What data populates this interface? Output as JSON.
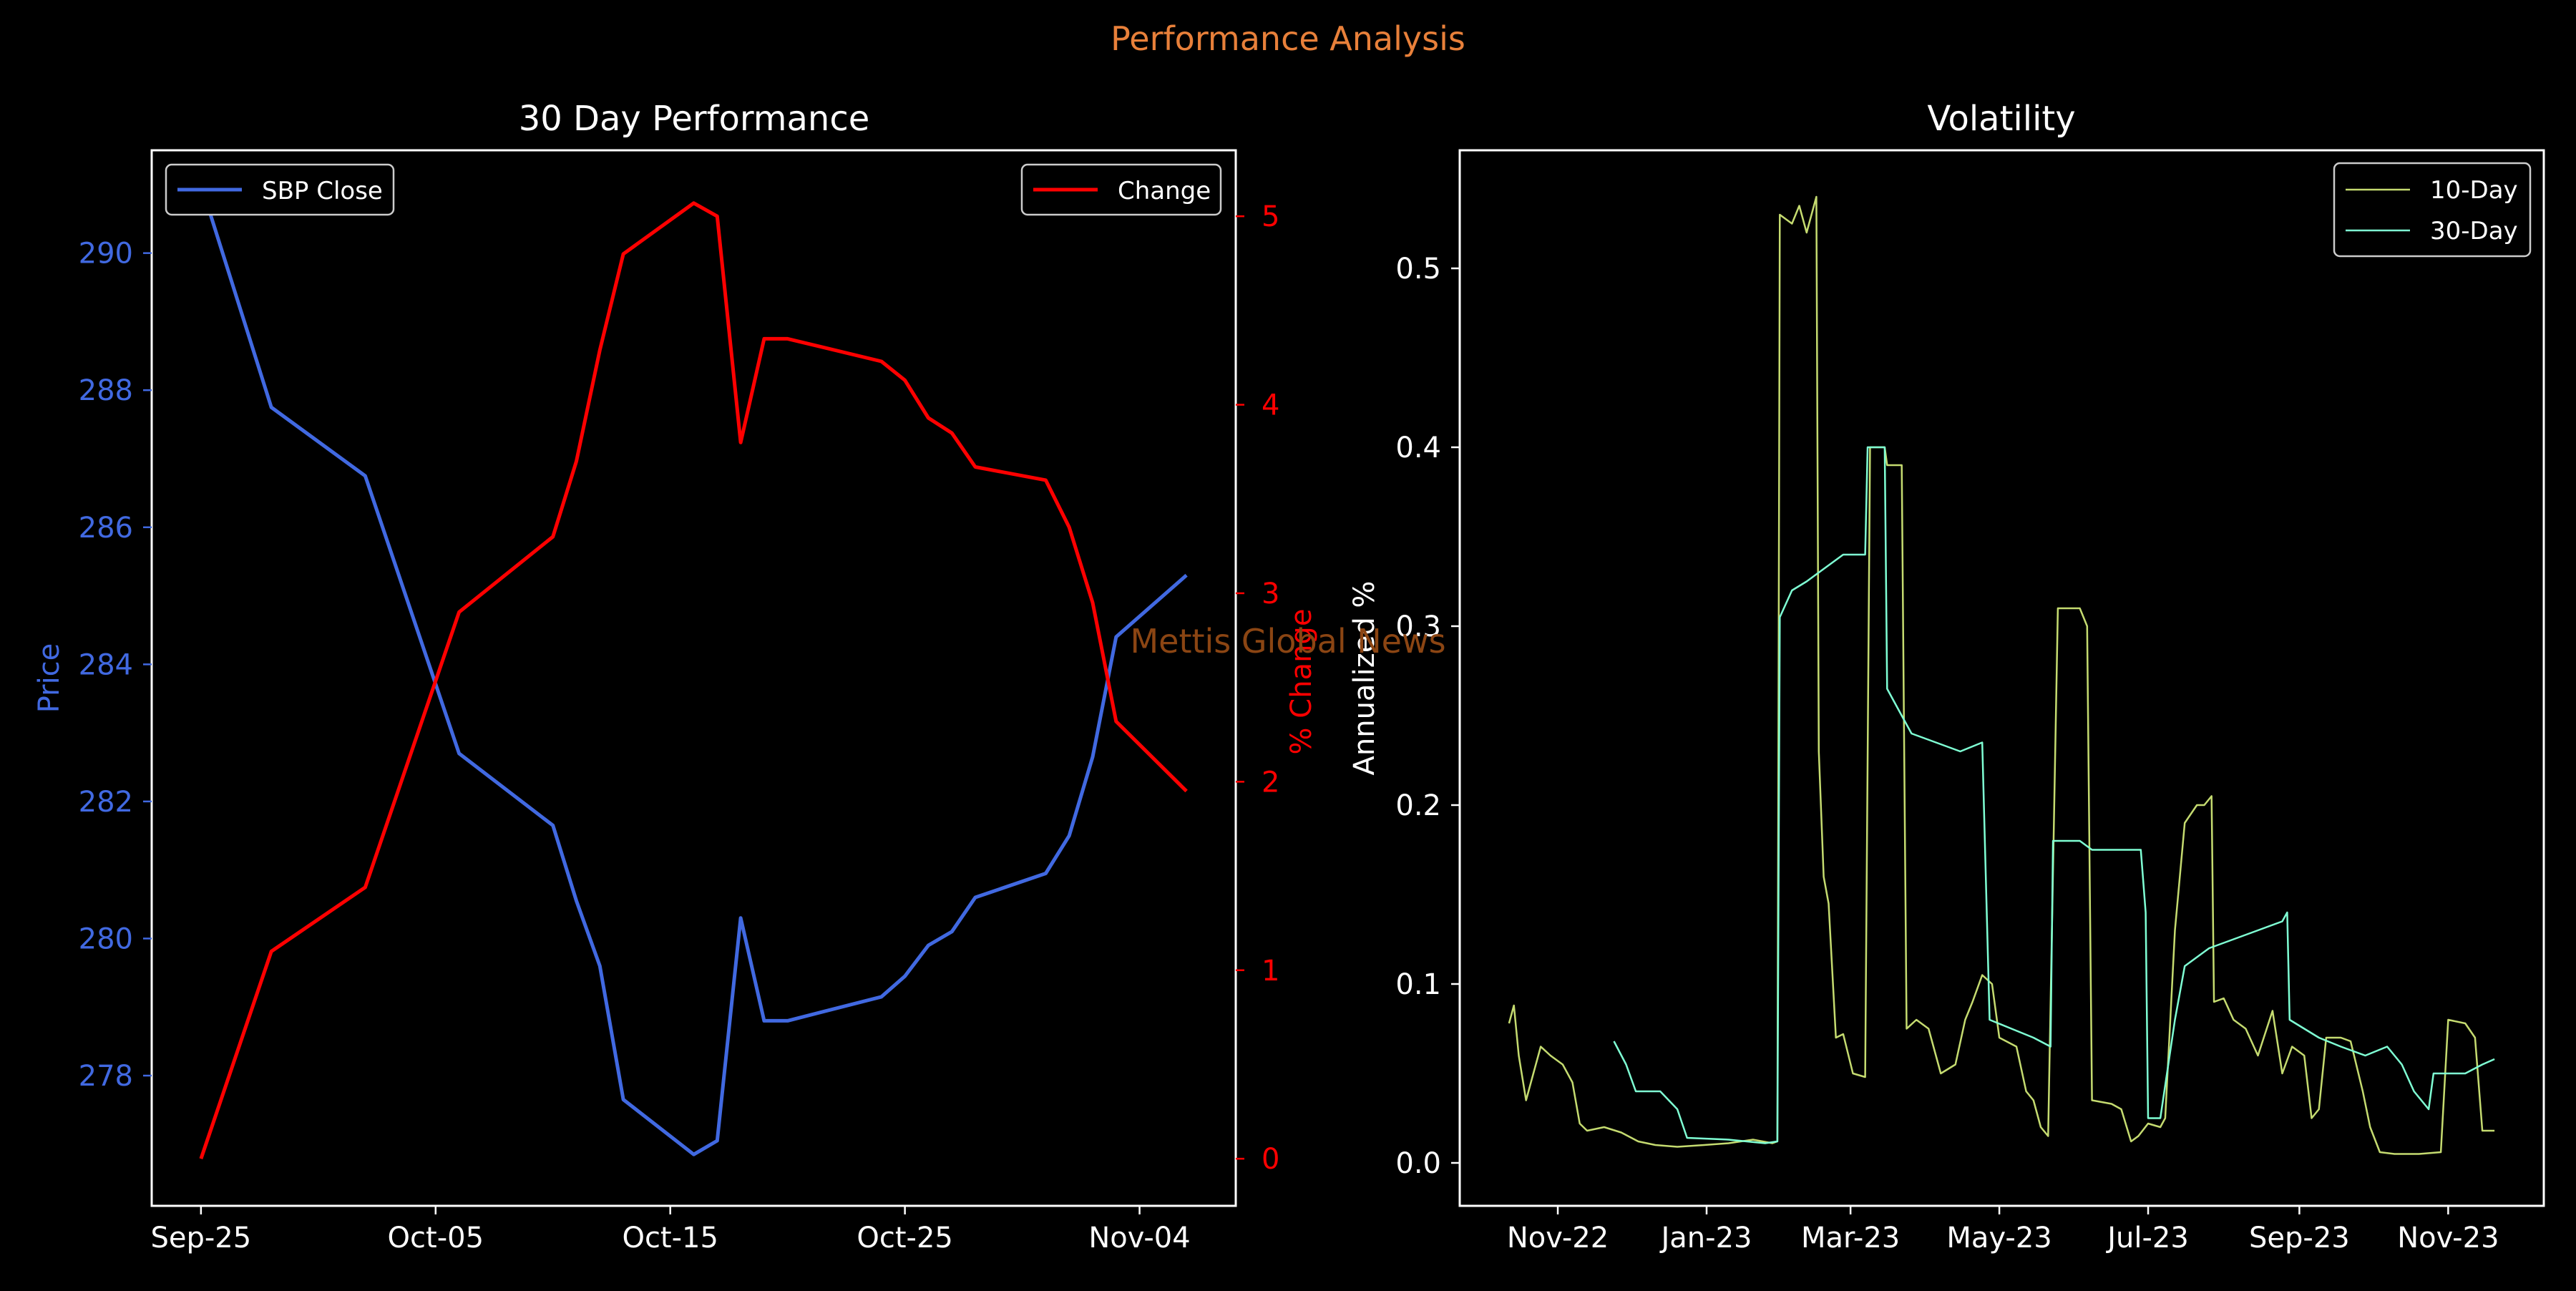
{
  "suptitle": "Performance Analysis",
  "watermark": "Mettis Global News",
  "colors": {
    "background": "#000000",
    "suptitle": "#E8803A",
    "price": "#4169E1",
    "change": "#FF0000",
    "vol10": "#C5DB70",
    "vol30": "#7FFFD4",
    "axis": "#FFFFFF",
    "watermark": "#8B4513"
  },
  "chart_data": [
    {
      "type": "line",
      "title": "30 Day Performance",
      "xlabel": "",
      "ylabel_left": "Price",
      "ylabel_right": "% Change",
      "x_tick_labels": [
        "Sep-25",
        "Oct-05",
        "Oct-15",
        "Oct-25",
        "Nov-04"
      ],
      "ylim_left": [
        276.1,
        291.5
      ],
      "ylim_right": [
        -0.25,
        5.35
      ],
      "y_ticks_left": [
        278,
        280,
        282,
        284,
        286,
        288,
        290
      ],
      "y_ticks_right": [
        0,
        1,
        2,
        3,
        4,
        5
      ],
      "legend_left": {
        "label": "SBP Close",
        "placement": "upper left"
      },
      "legend_right": {
        "label": "Change",
        "placement": "upper right"
      },
      "series": [
        {
          "name": "SBP Close",
          "axis": "left",
          "x": [
            "2023-09-25",
            "2023-09-28",
            "2023-10-02",
            "2023-10-06",
            "2023-10-10",
            "2023-10-11",
            "2023-10-12",
            "2023-10-13",
            "2023-10-16",
            "2023-10-17",
            "2023-10-18",
            "2023-10-19",
            "2023-10-20",
            "2023-10-24",
            "2023-10-25",
            "2023-10-26",
            "2023-10-27",
            "2023-10-28",
            "2023-10-31",
            "2023-11-01",
            "2023-11-02",
            "2023-11-03",
            "2023-11-06"
          ],
          "values": [
            291.0,
            287.75,
            286.75,
            282.7,
            281.65,
            280.55,
            279.6,
            277.65,
            276.85,
            277.05,
            280.3,
            278.8,
            278.8,
            279.15,
            279.45,
            279.9,
            280.1,
            280.6,
            280.95,
            281.5,
            282.65,
            284.4,
            285.3
          ]
        },
        {
          "name": "Change",
          "axis": "right",
          "x": [
            "2023-09-25",
            "2023-09-28",
            "2023-10-02",
            "2023-10-06",
            "2023-10-10",
            "2023-10-11",
            "2023-10-12",
            "2023-10-13",
            "2023-10-16",
            "2023-10-17",
            "2023-10-18",
            "2023-10-19",
            "2023-10-20",
            "2023-10-24",
            "2023-10-25",
            "2023-10-26",
            "2023-10-27",
            "2023-10-28",
            "2023-10-31",
            "2023-11-01",
            "2023-11-02",
            "2023-11-03",
            "2023-11-06"
          ],
          "values": [
            0.0,
            1.1,
            1.44,
            2.9,
            3.3,
            3.7,
            4.29,
            4.8,
            5.07,
            5.0,
            3.8,
            4.35,
            4.35,
            4.23,
            4.13,
            3.93,
            3.85,
            3.67,
            3.6,
            3.35,
            2.95,
            2.32,
            1.95
          ]
        }
      ]
    },
    {
      "type": "line",
      "title": "Volatility",
      "xlabel": "",
      "ylabel": "Annualized %",
      "x_tick_labels": [
        "Nov-22",
        "Jan-23",
        "Mar-23",
        "May-23",
        "Jul-23",
        "Sep-23",
        "Nov-23"
      ],
      "ylim": [
        -0.024,
        0.566
      ],
      "y_ticks": [
        0.0,
        0.1,
        0.2,
        0.3,
        0.4,
        0.5
      ],
      "legend": {
        "entries": [
          "10-Day",
          "30-Day"
        ],
        "placement": "upper right"
      },
      "series": [
        {
          "name": "10-Day",
          "points": [
            [
              "2022-10-12",
              0.078
            ],
            [
              "2022-10-14",
              0.088
            ],
            [
              "2022-10-16",
              0.06
            ],
            [
              "2022-10-19",
              0.035
            ],
            [
              "2022-10-21",
              0.045
            ],
            [
              "2022-10-25",
              0.065
            ],
            [
              "2022-10-29",
              0.06
            ],
            [
              "2022-11-03",
              0.055
            ],
            [
              "2022-11-07",
              0.045
            ],
            [
              "2022-11-10",
              0.022
            ],
            [
              "2022-11-13",
              0.018
            ],
            [
              "2022-11-20",
              0.02
            ],
            [
              "2022-11-27",
              0.017
            ],
            [
              "2022-12-04",
              0.012
            ],
            [
              "2022-12-11",
              0.01
            ],
            [
              "2022-12-20",
              0.009
            ],
            [
              "2022-12-31",
              0.01
            ],
            [
              "2023-01-10",
              0.011
            ],
            [
              "2023-01-20",
              0.013
            ],
            [
              "2023-01-28",
              0.011
            ],
            [
              "2023-01-30",
              0.012
            ],
            [
              "2023-01-31",
              0.53
            ],
            [
              "2023-02-05",
              0.525
            ],
            [
              "2023-02-08",
              0.535
            ],
            [
              "2023-02-11",
              0.52
            ],
            [
              "2023-02-15",
              0.54
            ],
            [
              "2023-02-16",
              0.23
            ],
            [
              "2023-02-18",
              0.16
            ],
            [
              "2023-02-20",
              0.145
            ],
            [
              "2023-02-23",
              0.07
            ],
            [
              "2023-02-26",
              0.072
            ],
            [
              "2023-03-02",
              0.05
            ],
            [
              "2023-03-07",
              0.048
            ],
            [
              "2023-03-09",
              0.4
            ],
            [
              "2023-03-15",
              0.4
            ],
            [
              "2023-03-16",
              0.39
            ],
            [
              "2023-03-22",
              0.39
            ],
            [
              "2023-03-24",
              0.075
            ],
            [
              "2023-03-28",
              0.08
            ],
            [
              "2023-04-02",
              0.075
            ],
            [
              "2023-04-07",
              0.05
            ],
            [
              "2023-04-13",
              0.055
            ],
            [
              "2023-04-17",
              0.08
            ],
            [
              "2023-04-20",
              0.09
            ],
            [
              "2023-04-24",
              0.105
            ],
            [
              "2023-04-28",
              0.1
            ],
            [
              "2023-05-01",
              0.07
            ],
            [
              "2023-05-08",
              0.065
            ],
            [
              "2023-05-12",
              0.04
            ],
            [
              "2023-05-15",
              0.035
            ],
            [
              "2023-05-18",
              0.02
            ],
            [
              "2023-05-21",
              0.015
            ],
            [
              "2023-05-25",
              0.31
            ],
            [
              "2023-06-03",
              0.31
            ],
            [
              "2023-06-06",
              0.3
            ],
            [
              "2023-06-08",
              0.035
            ],
            [
              "2023-06-16",
              0.033
            ],
            [
              "2023-06-20",
              0.03
            ],
            [
              "2023-06-24",
              0.012
            ],
            [
              "2023-06-27",
              0.015
            ],
            [
              "2023-07-01",
              0.022
            ],
            [
              "2023-07-06",
              0.02
            ],
            [
              "2023-07-08",
              0.025
            ],
            [
              "2023-07-12",
              0.13
            ],
            [
              "2023-07-16",
              0.19
            ],
            [
              "2023-07-21",
              0.2
            ],
            [
              "2023-07-24",
              0.2
            ],
            [
              "2023-07-27",
              0.205
            ],
            [
              "2023-07-28",
              0.09
            ],
            [
              "2023-08-01",
              0.092
            ],
            [
              "2023-08-05",
              0.08
            ],
            [
              "2023-08-10",
              0.075
            ],
            [
              "2023-08-15",
              0.06
            ],
            [
              "2023-08-21",
              0.085
            ],
            [
              "2023-08-25",
              0.05
            ],
            [
              "2023-08-29",
              0.065
            ],
            [
              "2023-09-03",
              0.06
            ],
            [
              "2023-09-06",
              0.025
            ],
            [
              "2023-09-09",
              0.03
            ],
            [
              "2023-09-12",
              0.07
            ],
            [
              "2023-09-18",
              0.07
            ],
            [
              "2023-09-22",
              0.068
            ],
            [
              "2023-09-27",
              0.04
            ],
            [
              "2023-09-30",
              0.02
            ],
            [
              "2023-10-04",
              0.006
            ],
            [
              "2023-10-10",
              0.005
            ],
            [
              "2023-10-20",
              0.005
            ],
            [
              "2023-10-29",
              0.006
            ],
            [
              "2023-11-01",
              0.08
            ],
            [
              "2023-11-08",
              0.078
            ],
            [
              "2023-11-12",
              0.07
            ],
            [
              "2023-11-15",
              0.018
            ],
            [
              "2023-11-20",
              0.018
            ]
          ]
        },
        {
          "name": "30-Day",
          "points": [
            [
              "2022-11-24",
              0.068
            ],
            [
              "2022-11-29",
              0.055
            ],
            [
              "2022-12-03",
              0.04
            ],
            [
              "2022-12-13",
              0.04
            ],
            [
              "2022-12-20",
              0.03
            ],
            [
              "2022-12-24",
              0.014
            ],
            [
              "2023-01-10",
              0.013
            ],
            [
              "2023-01-25",
              0.011
            ],
            [
              "2023-01-30",
              0.012
            ],
            [
              "2023-01-31",
              0.305
            ],
            [
              "2023-02-05",
              0.32
            ],
            [
              "2023-02-11",
              0.325
            ],
            [
              "2023-02-16",
              0.33
            ],
            [
              "2023-02-26",
              0.34
            ],
            [
              "2023-03-07",
              0.34
            ],
            [
              "2023-03-08",
              0.4
            ],
            [
              "2023-03-15",
              0.4
            ],
            [
              "2023-03-16",
              0.265
            ],
            [
              "2023-03-22",
              0.25
            ],
            [
              "2023-03-26",
              0.24
            ],
            [
              "2023-04-05",
              0.235
            ],
            [
              "2023-04-15",
              0.23
            ],
            [
              "2023-04-24",
              0.235
            ],
            [
              "2023-04-27",
              0.08
            ],
            [
              "2023-05-06",
              0.075
            ],
            [
              "2023-05-15",
              0.07
            ],
            [
              "2023-05-22",
              0.065
            ],
            [
              "2023-05-23",
              0.18
            ],
            [
              "2023-06-03",
              0.18
            ],
            [
              "2023-06-08",
              0.175
            ],
            [
              "2023-06-20",
              0.175
            ],
            [
              "2023-06-28",
              0.175
            ],
            [
              "2023-06-30",
              0.14
            ],
            [
              "2023-07-01",
              0.025
            ],
            [
              "2023-07-06",
              0.025
            ],
            [
              "2023-07-12",
              0.08
            ],
            [
              "2023-07-16",
              0.11
            ],
            [
              "2023-07-26",
              0.12
            ],
            [
              "2023-08-05",
              0.125
            ],
            [
              "2023-08-15",
              0.13
            ],
            [
              "2023-08-25",
              0.135
            ],
            [
              "2023-08-27",
              0.14
            ],
            [
              "2023-08-28",
              0.08
            ],
            [
              "2023-09-09",
              0.07
            ],
            [
              "2023-09-18",
              0.065
            ],
            [
              "2023-09-28",
              0.06
            ],
            [
              "2023-10-07",
              0.065
            ],
            [
              "2023-10-13",
              0.055
            ],
            [
              "2023-10-18",
              0.04
            ],
            [
              "2023-10-24",
              0.03
            ],
            [
              "2023-10-26",
              0.05
            ],
            [
              "2023-11-08",
              0.05
            ],
            [
              "2023-11-15",
              0.055
            ],
            [
              "2023-11-20",
              0.058
            ]
          ]
        }
      ]
    }
  ]
}
